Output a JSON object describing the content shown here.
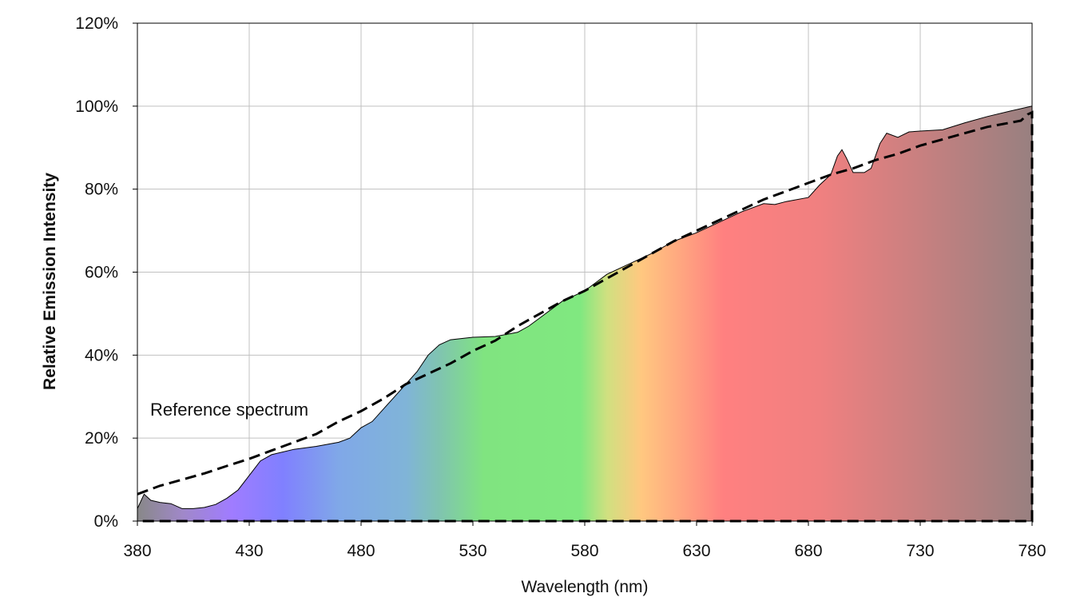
{
  "chart_data": {
    "type": "area",
    "title": "",
    "xlabel": "Wavelength (nm)",
    "ylabel": "Relative Emission Intensity",
    "xlim": [
      380,
      780
    ],
    "ylim": [
      0,
      120
    ],
    "xticks": [
      380,
      430,
      480,
      530,
      580,
      630,
      680,
      730,
      780
    ],
    "yticks": [
      0,
      20,
      40,
      60,
      80,
      100,
      120
    ],
    "ytick_suffix": "%",
    "grid": true,
    "annotation": "Reference spectrum",
    "series": [
      {
        "style": "filled area with spectral colour gradient, thin black outline",
        "x": [
          380,
          383,
          386,
          390,
          395,
          400,
          405,
          410,
          415,
          420,
          425,
          430,
          435,
          440,
          450,
          460,
          470,
          475,
          480,
          485,
          490,
          495,
          500,
          505,
          510,
          515,
          520,
          530,
          540,
          550,
          555,
          560,
          570,
          580,
          585,
          590,
          600,
          610,
          620,
          630,
          640,
          650,
          660,
          665,
          670,
          680,
          685,
          690,
          693,
          695,
          697,
          700,
          705,
          708,
          712,
          715,
          720,
          725,
          730,
          740,
          750,
          760,
          770,
          780
        ],
        "y": [
          3,
          6.5,
          5,
          4.5,
          4.2,
          3,
          3,
          3.3,
          4,
          5.5,
          7.5,
          11,
          14.5,
          16,
          17.3,
          18,
          19,
          20,
          22.5,
          24,
          27,
          30,
          33,
          36,
          40,
          42.5,
          43.7,
          44.3,
          44.5,
          45.5,
          47,
          49,
          53,
          55.5,
          57.5,
          59.5,
          62,
          64.5,
          67.5,
          69.5,
          72,
          74.5,
          76.5,
          76.3,
          77,
          78,
          81,
          83.5,
          88,
          89.5,
          87.5,
          84,
          84,
          85,
          91,
          93.5,
          92.5,
          93.8,
          94,
          94.3,
          96,
          97.5,
          98.8,
          100
        ]
      },
      {
        "name": "Reference spectrum",
        "style": "dashed black line",
        "x": [
          380,
          390,
          400,
          410,
          420,
          430,
          440,
          450,
          460,
          470,
          480,
          490,
          500,
          510,
          520,
          530,
          540,
          550,
          560,
          570,
          580,
          590,
          600,
          610,
          620,
          630,
          640,
          650,
          660,
          670,
          680,
          690,
          700,
          710,
          720,
          730,
          740,
          750,
          760,
          770,
          775,
          778,
          780
        ],
        "y": [
          6.5,
          8.5,
          10,
          11.5,
          13.3,
          15,
          17,
          19,
          21,
          24,
          26.5,
          29.5,
          33,
          35.5,
          38,
          41,
          43.5,
          47,
          50,
          53,
          55.5,
          58.5,
          61.5,
          64.5,
          67.5,
          70,
          72.5,
          75,
          77.5,
          79.5,
          81.5,
          83.5,
          85,
          87,
          88.5,
          90.5,
          92,
          93.5,
          95,
          96,
          96.5,
          98,
          98.5
        ]
      }
    ],
    "gradient_stops": [
      {
        "nm": 380,
        "color": "#888888"
      },
      {
        "nm": 400,
        "color": "#a088c8"
      },
      {
        "nm": 422,
        "color": "#a07cff"
      },
      {
        "nm": 445,
        "color": "#8080ff"
      },
      {
        "nm": 470,
        "color": "#80a8e8"
      },
      {
        "nm": 500,
        "color": "#80b4d8"
      },
      {
        "nm": 515,
        "color": "#80c4b0"
      },
      {
        "nm": 535,
        "color": "#80e480"
      },
      {
        "nm": 578,
        "color": "#80e880"
      },
      {
        "nm": 590,
        "color": "#d0e080"
      },
      {
        "nm": 605,
        "color": "#ffc880"
      },
      {
        "nm": 622,
        "color": "#ffa880"
      },
      {
        "nm": 642,
        "color": "#ff8080"
      },
      {
        "nm": 685,
        "color": "#f08080"
      },
      {
        "nm": 730,
        "color": "#c88080"
      },
      {
        "nm": 780,
        "color": "#988080"
      }
    ]
  }
}
